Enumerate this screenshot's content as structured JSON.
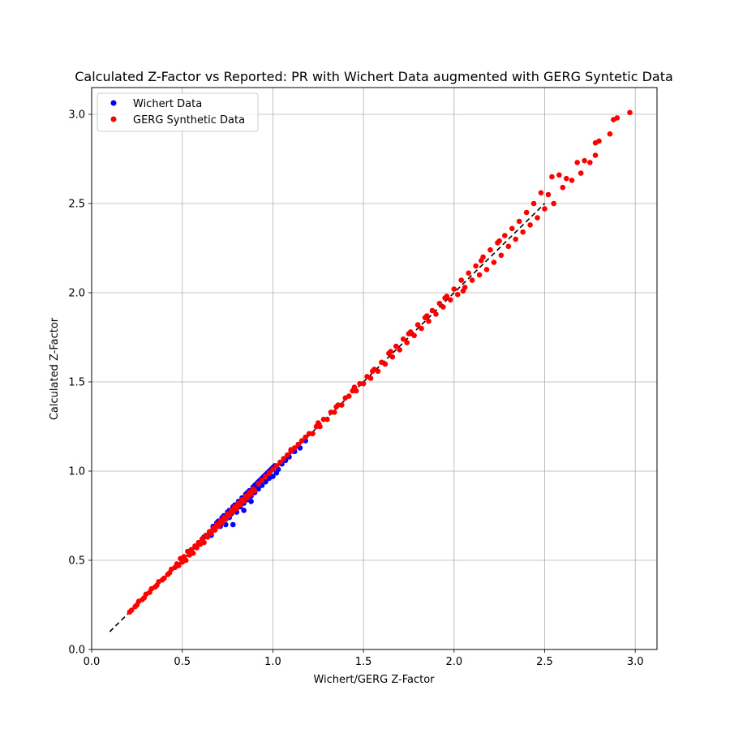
{
  "chart_data": {
    "type": "scatter",
    "title": "Calculated Z-Factor vs Reported: PR with Wichert Data augmented with GERG Syntetic Data",
    "xlabel": "Wichert/GERG Z-Factor",
    "ylabel": "Calculated Z-Factor",
    "xlim": [
      0.0,
      3.12
    ],
    "ylim": [
      0.0,
      3.15
    ],
    "xticks": [
      0.0,
      0.5,
      1.0,
      1.5,
      2.0,
      2.5,
      3.0
    ],
    "yticks": [
      0.0,
      0.5,
      1.0,
      1.5,
      2.0,
      2.5,
      3.0
    ],
    "xtick_labels": [
      "0.0",
      "0.5",
      "1.0",
      "1.5",
      "2.0",
      "2.5",
      "3.0"
    ],
    "ytick_labels": [
      "0.0",
      "0.5",
      "1.0",
      "1.5",
      "2.0",
      "2.5",
      "3.0"
    ],
    "grid": true,
    "legend_position": "top-left",
    "reference_line": {
      "x": [
        0.1,
        2.5
      ],
      "y": [
        0.1,
        2.5
      ],
      "style": "dashed",
      "color": "#000000"
    },
    "series": [
      {
        "name": "Wichert Data",
        "color": "#0000ff",
        "points": [
          [
            0.62,
            0.63
          ],
          [
            0.65,
            0.66
          ],
          [
            0.67,
            0.69
          ],
          [
            0.69,
            0.71
          ],
          [
            0.7,
            0.72
          ],
          [
            0.71,
            0.69
          ],
          [
            0.72,
            0.74
          ],
          [
            0.73,
            0.75
          ],
          [
            0.74,
            0.7
          ],
          [
            0.75,
            0.77
          ],
          [
            0.76,
            0.78
          ],
          [
            0.77,
            0.76
          ],
          [
            0.78,
            0.7
          ],
          [
            0.78,
            0.8
          ],
          [
            0.79,
            0.81
          ],
          [
            0.8,
            0.79
          ],
          [
            0.81,
            0.83
          ],
          [
            0.82,
            0.8
          ],
          [
            0.83,
            0.85
          ],
          [
            0.84,
            0.78
          ],
          [
            0.85,
            0.87
          ],
          [
            0.86,
            0.84
          ],
          [
            0.87,
            0.89
          ],
          [
            0.88,
            0.83
          ],
          [
            0.89,
            0.91
          ],
          [
            0.9,
            0.88
          ],
          [
            0.91,
            0.93
          ],
          [
            0.92,
            0.9
          ],
          [
            0.93,
            0.95
          ],
          [
            0.94,
            0.92
          ],
          [
            0.95,
            0.97
          ],
          [
            0.96,
            0.94
          ],
          [
            0.97,
            0.99
          ],
          [
            0.98,
            0.96
          ],
          [
            0.99,
            1.01
          ],
          [
            1.0,
            0.97
          ],
          [
            1.01,
            1.03
          ],
          [
            1.02,
            0.99
          ],
          [
            1.03,
            1.01
          ],
          [
            1.05,
            1.04
          ],
          [
            1.07,
            1.06
          ],
          [
            1.09,
            1.08
          ],
          [
            1.12,
            1.11
          ],
          [
            1.15,
            1.13
          ],
          [
            1.18,
            1.17
          ],
          [
            0.66,
            0.64
          ],
          [
            0.68,
            0.67
          ],
          [
            0.74,
            0.73
          ],
          [
            0.76,
            0.74
          ],
          [
            0.8,
            0.77
          ],
          [
            0.82,
            0.83
          ],
          [
            0.84,
            0.82
          ],
          [
            0.86,
            0.88
          ],
          [
            0.88,
            0.86
          ],
          [
            0.9,
            0.92
          ],
          [
            0.92,
            0.94
          ],
          [
            0.94,
            0.96
          ],
          [
            0.96,
            0.98
          ],
          [
            0.98,
            1.0
          ],
          [
            1.0,
            1.02
          ]
        ]
      },
      {
        "name": "GERG Synthetic Data",
        "color": "#ff0000",
        "points": [
          [
            0.21,
            0.21
          ],
          [
            0.22,
            0.22
          ],
          [
            0.24,
            0.24
          ],
          [
            0.25,
            0.25
          ],
          [
            0.26,
            0.27
          ],
          [
            0.28,
            0.28
          ],
          [
            0.29,
            0.29
          ],
          [
            0.3,
            0.31
          ],
          [
            0.32,
            0.32
          ],
          [
            0.33,
            0.34
          ],
          [
            0.35,
            0.35
          ],
          [
            0.36,
            0.36
          ],
          [
            0.37,
            0.38
          ],
          [
            0.39,
            0.39
          ],
          [
            0.4,
            0.4
          ],
          [
            0.42,
            0.42
          ],
          [
            0.43,
            0.43
          ],
          [
            0.44,
            0.45
          ],
          [
            0.46,
            0.46
          ],
          [
            0.47,
            0.48
          ],
          [
            0.48,
            0.47
          ],
          [
            0.49,
            0.51
          ],
          [
            0.5,
            0.49
          ],
          [
            0.51,
            0.52
          ],
          [
            0.52,
            0.5
          ],
          [
            0.53,
            0.55
          ],
          [
            0.54,
            0.53
          ],
          [
            0.55,
            0.56
          ],
          [
            0.56,
            0.54
          ],
          [
            0.57,
            0.58
          ],
          [
            0.58,
            0.57
          ],
          [
            0.59,
            0.6
          ],
          [
            0.6,
            0.59
          ],
          [
            0.61,
            0.62
          ],
          [
            0.62,
            0.6
          ],
          [
            0.63,
            0.64
          ],
          [
            0.64,
            0.63
          ],
          [
            0.65,
            0.66
          ],
          [
            0.66,
            0.65
          ],
          [
            0.67,
            0.68
          ],
          [
            0.68,
            0.67
          ],
          [
            0.69,
            0.7
          ],
          [
            0.7,
            0.69
          ],
          [
            0.71,
            0.72
          ],
          [
            0.72,
            0.71
          ],
          [
            0.73,
            0.74
          ],
          [
            0.74,
            0.73
          ],
          [
            0.75,
            0.76
          ],
          [
            0.76,
            0.75
          ],
          [
            0.77,
            0.78
          ],
          [
            0.78,
            0.77
          ],
          [
            0.79,
            0.8
          ],
          [
            0.8,
            0.79
          ],
          [
            0.81,
            0.82
          ],
          [
            0.82,
            0.81
          ],
          [
            0.83,
            0.84
          ],
          [
            0.84,
            0.83
          ],
          [
            0.85,
            0.86
          ],
          [
            0.86,
            0.85
          ],
          [
            0.87,
            0.88
          ],
          [
            0.88,
            0.87
          ],
          [
            0.89,
            0.9
          ],
          [
            0.9,
            0.89
          ],
          [
            0.92,
            0.93
          ],
          [
            0.94,
            0.95
          ],
          [
            0.96,
            0.97
          ],
          [
            0.98,
            0.99
          ],
          [
            1.0,
            1.01
          ],
          [
            1.02,
            1.03
          ],
          [
            1.04,
            1.05
          ],
          [
            1.06,
            1.07
          ],
          [
            1.08,
            1.09
          ],
          [
            1.1,
            1.11
          ],
          [
            1.12,
            1.13
          ],
          [
            1.14,
            1.15
          ],
          [
            1.16,
            1.17
          ],
          [
            1.18,
            1.19
          ],
          [
            1.2,
            1.21
          ],
          [
            1.22,
            1.21
          ],
          [
            1.24,
            1.25
          ],
          [
            1.26,
            1.25
          ],
          [
            1.28,
            1.29
          ],
          [
            1.3,
            1.29
          ],
          [
            1.32,
            1.33
          ],
          [
            1.34,
            1.33
          ],
          [
            1.36,
            1.37
          ],
          [
            1.38,
            1.37
          ],
          [
            1.4,
            1.41
          ],
          [
            1.42,
            1.42
          ],
          [
            1.44,
            1.45
          ],
          [
            1.46,
            1.45
          ],
          [
            1.48,
            1.49
          ],
          [
            1.5,
            1.49
          ],
          [
            1.52,
            1.53
          ],
          [
            1.54,
            1.52
          ],
          [
            1.56,
            1.57
          ],
          [
            1.58,
            1.56
          ],
          [
            1.6,
            1.61
          ],
          [
            1.62,
            1.6
          ],
          [
            1.64,
            1.66
          ],
          [
            1.66,
            1.64
          ],
          [
            1.68,
            1.7
          ],
          [
            1.7,
            1.68
          ],
          [
            1.72,
            1.74
          ],
          [
            1.74,
            1.72
          ],
          [
            1.76,
            1.78
          ],
          [
            1.78,
            1.76
          ],
          [
            1.8,
            1.82
          ],
          [
            1.82,
            1.8
          ],
          [
            1.84,
            1.86
          ],
          [
            1.86,
            1.84
          ],
          [
            1.88,
            1.9
          ],
          [
            1.9,
            1.88
          ],
          [
            1.92,
            1.94
          ],
          [
            1.94,
            1.92
          ],
          [
            1.96,
            1.98
          ],
          [
            1.98,
            1.96
          ],
          [
            2.0,
            2.02
          ],
          [
            2.02,
            1.99
          ],
          [
            2.04,
            2.07
          ],
          [
            2.06,
            2.03
          ],
          [
            2.08,
            2.11
          ],
          [
            2.1,
            2.07
          ],
          [
            2.12,
            2.15
          ],
          [
            2.14,
            2.1
          ],
          [
            2.16,
            2.2
          ],
          [
            2.18,
            2.13
          ],
          [
            2.2,
            2.24
          ],
          [
            2.22,
            2.17
          ],
          [
            2.24,
            2.28
          ],
          [
            2.26,
            2.21
          ],
          [
            2.28,
            2.32
          ],
          [
            2.3,
            2.26
          ],
          [
            2.32,
            2.36
          ],
          [
            2.34,
            2.3
          ],
          [
            2.36,
            2.4
          ],
          [
            2.38,
            2.34
          ],
          [
            2.4,
            2.45
          ],
          [
            2.42,
            2.38
          ],
          [
            2.44,
            2.5
          ],
          [
            2.46,
            2.42
          ],
          [
            2.48,
            2.56
          ],
          [
            2.5,
            2.47
          ],
          [
            2.52,
            2.55
          ],
          [
            2.54,
            2.65
          ],
          [
            2.55,
            2.5
          ],
          [
            2.58,
            2.66
          ],
          [
            2.6,
            2.59
          ],
          [
            2.62,
            2.64
          ],
          [
            2.65,
            2.63
          ],
          [
            2.68,
            2.73
          ],
          [
            2.7,
            2.67
          ],
          [
            2.72,
            2.74
          ],
          [
            2.75,
            2.73
          ],
          [
            2.78,
            2.77
          ],
          [
            2.78,
            2.84
          ],
          [
            2.8,
            2.85
          ],
          [
            2.86,
            2.89
          ],
          [
            2.88,
            2.97
          ],
          [
            2.9,
            2.98
          ],
          [
            2.97,
            3.01
          ],
          [
            1.1,
            1.12
          ],
          [
            1.25,
            1.27
          ],
          [
            1.45,
            1.47
          ],
          [
            1.65,
            1.67
          ],
          [
            1.85,
            1.87
          ],
          [
            2.05,
            2.01
          ],
          [
            2.25,
            2.29
          ],
          [
            1.35,
            1.36
          ],
          [
            1.55,
            1.56
          ],
          [
            1.75,
            1.77
          ],
          [
            1.95,
            1.97
          ],
          [
            2.15,
            2.18
          ]
        ]
      }
    ]
  }
}
